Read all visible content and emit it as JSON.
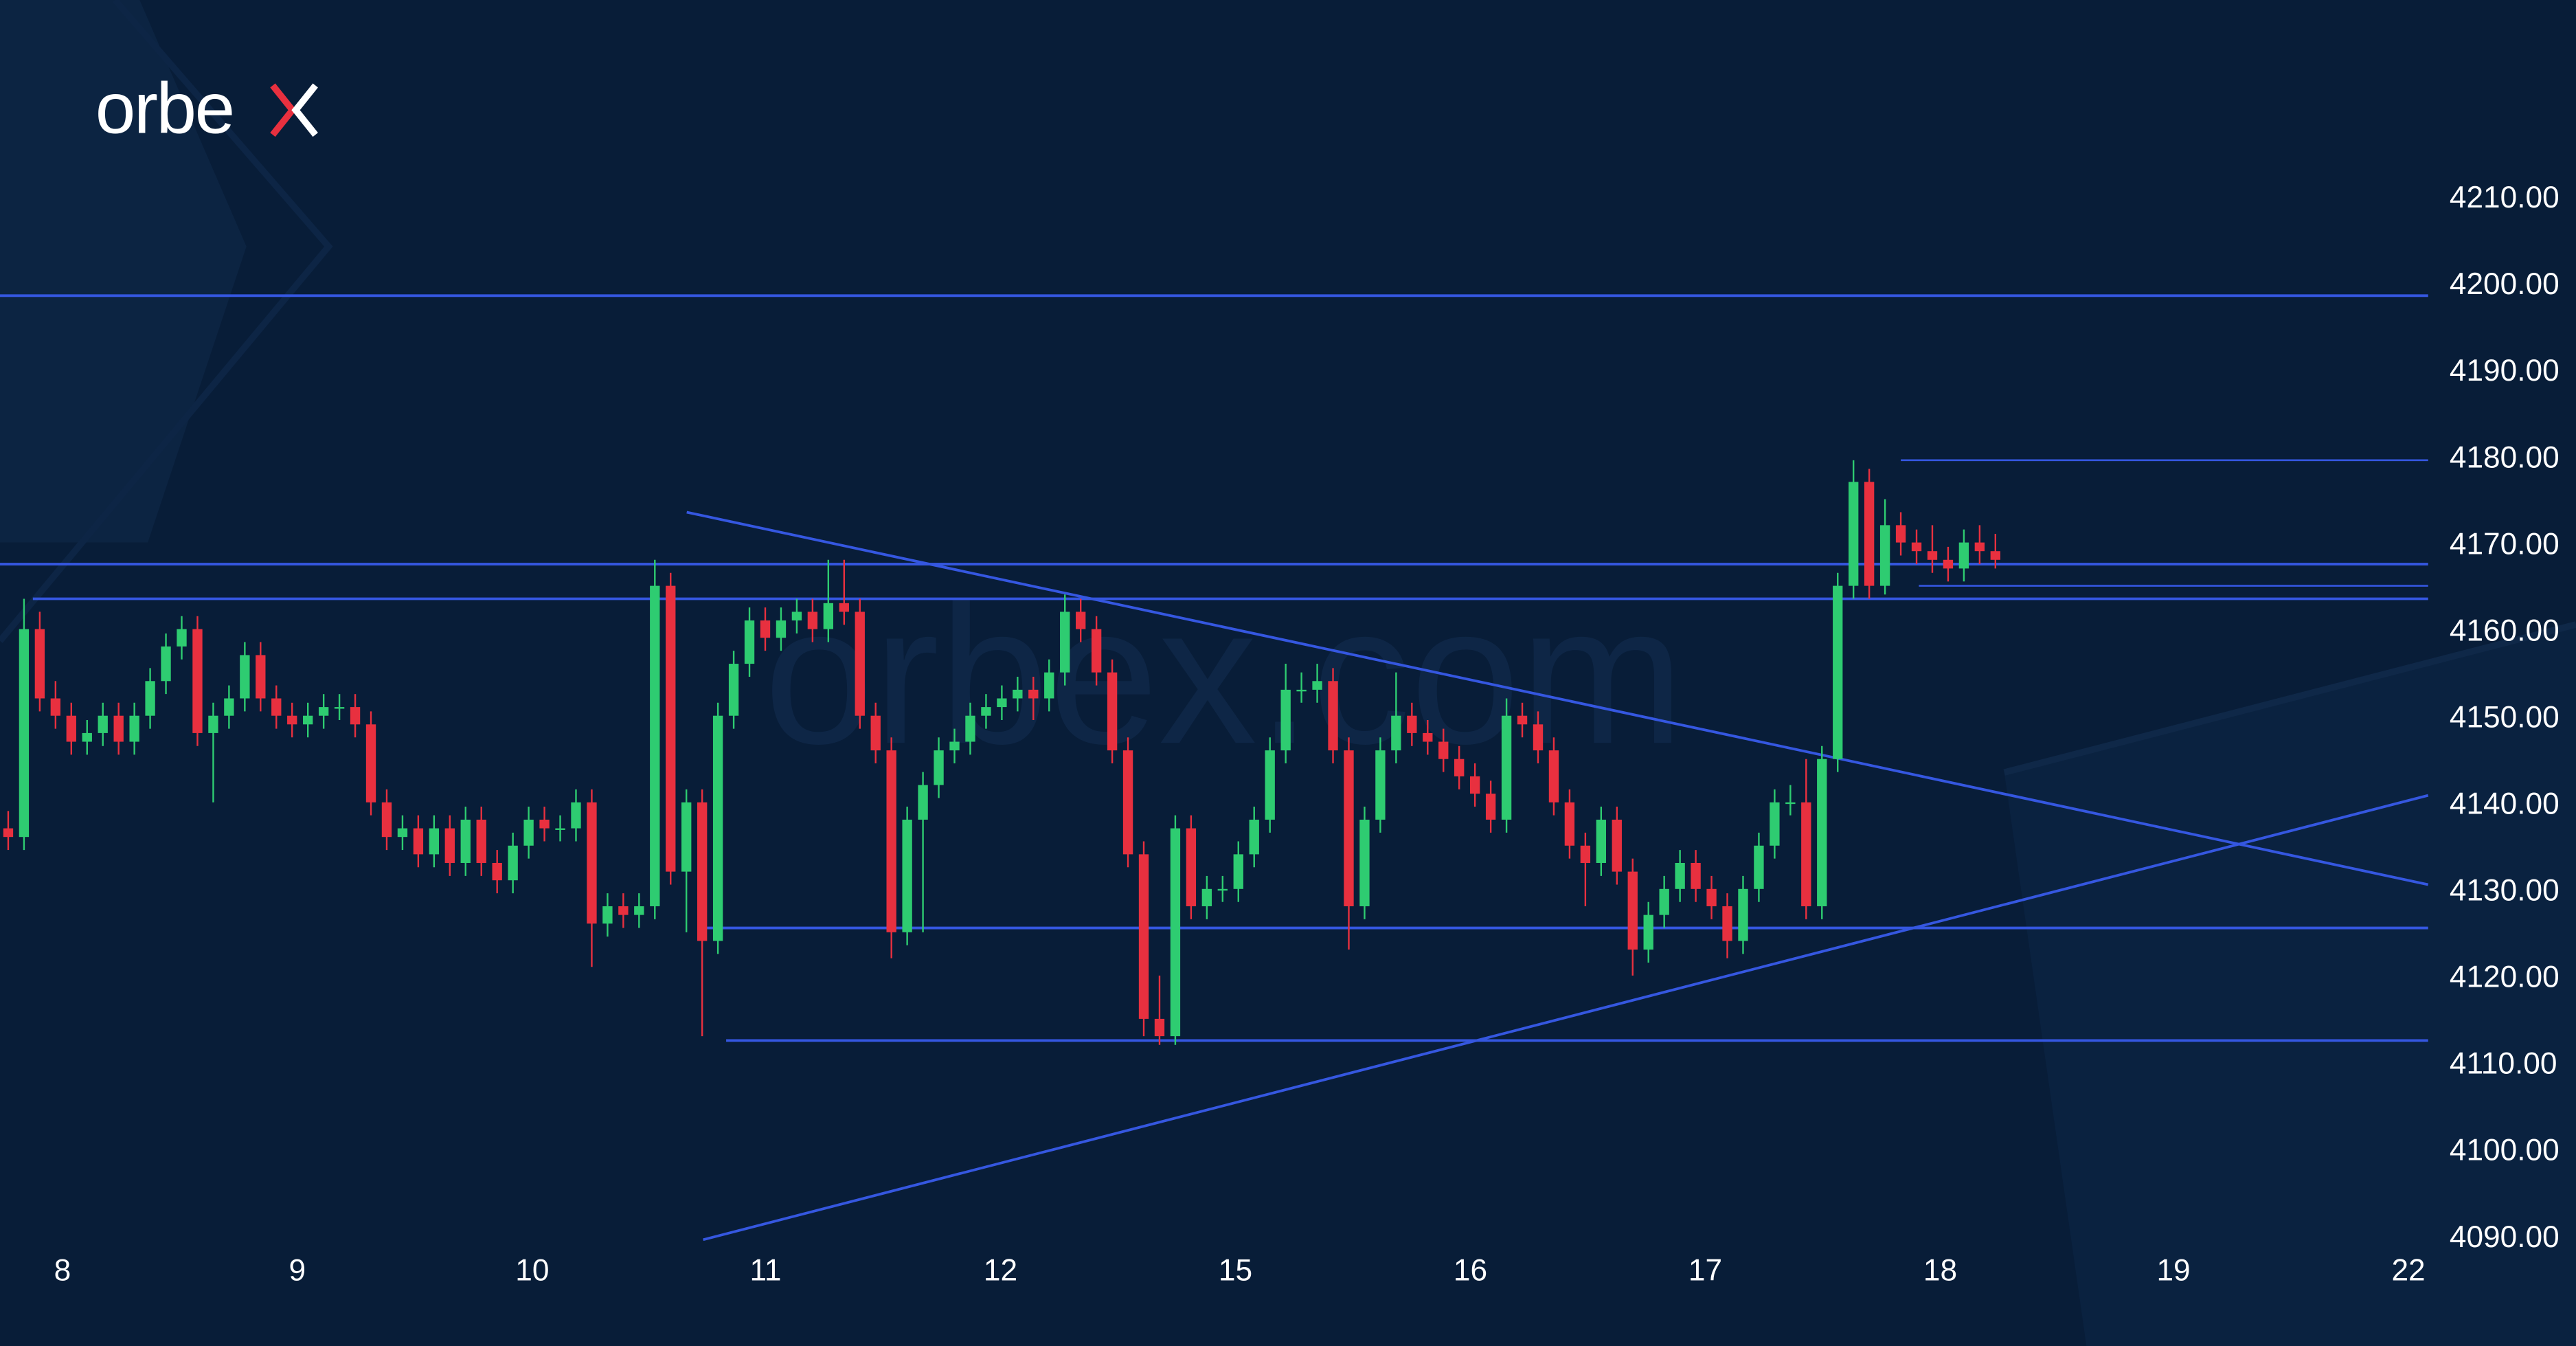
{
  "brand": {
    "logo_text": "orbex",
    "watermark": "orbex.com",
    "accent": "#e8303f"
  },
  "colors": {
    "background": "#081d38",
    "up": "#2ecc71",
    "down": "#e8303f",
    "lines": "#3557e0",
    "text": "#ffffff"
  },
  "chart_data": {
    "type": "candlestick",
    "title": "",
    "xlabel": "",
    "ylabel": "",
    "ylim": [
      4090,
      4210
    ],
    "y_ticks": [
      "4210.00",
      "4200.00",
      "4190.00",
      "4180.00",
      "4170.00",
      "4160.00",
      "4150.00",
      "4140.00",
      "4130.00",
      "4120.00",
      "4110.00",
      "4100.00",
      "4090.00"
    ],
    "x_ticks": [
      "8",
      "9",
      "10",
      "11",
      "12",
      "15",
      "16",
      "17",
      "18",
      "19",
      "22"
    ],
    "grid": false,
    "horizontal_levels": [
      4198.5,
      4167.5,
      4163.5,
      4179.5,
      4165,
      4125.5,
      4112.5
    ],
    "trendlines": [
      {
        "kind": "descending",
        "start_price": 4173.5,
        "end_price": 4130.5
      },
      {
        "kind": "ascending",
        "start_price": 4089.5,
        "end_price": 4140.8
      }
    ],
    "ohlc_columns": [
      "open",
      "high",
      "low",
      "close"
    ],
    "candles": [
      [
        4137,
        4139,
        4134.5,
        4136
      ],
      [
        4136,
        4163.5,
        4134.5,
        4160
      ],
      [
        4160,
        4162,
        4150.5,
        4152
      ],
      [
        4152,
        4154,
        4148.5,
        4150
      ],
      [
        4150,
        4151.5,
        4145.5,
        4147
      ],
      [
        4147,
        4149.5,
        4145.5,
        4148
      ],
      [
        4148,
        4151.5,
        4146.5,
        4150
      ],
      [
        4150,
        4151.5,
        4145.5,
        4147
      ],
      [
        4147,
        4151.5,
        4145.5,
        4150
      ],
      [
        4150,
        4155.5,
        4148.5,
        4154
      ],
      [
        4154,
        4159.5,
        4152.5,
        4158
      ],
      [
        4158,
        4161.5,
        4156.5,
        4160
      ],
      [
        4160,
        4161.5,
        4146.5,
        4148
      ],
      [
        4148,
        4151.5,
        4140,
        4150
      ],
      [
        4150,
        4153.5,
        4148.5,
        4152
      ],
      [
        4152,
        4158.5,
        4150.5,
        4157
      ],
      [
        4157,
        4158.5,
        4150.5,
        4152
      ],
      [
        4152,
        4153.5,
        4148.5,
        4150
      ],
      [
        4150,
        4151.5,
        4147.5,
        4149
      ],
      [
        4149,
        4151.5,
        4147.5,
        4150
      ],
      [
        4150,
        4152.5,
        4148.5,
        4151
      ],
      [
        4151,
        4152.5,
        4149.5,
        4151
      ],
      [
        4151,
        4152.5,
        4147.5,
        4149
      ],
      [
        4149,
        4150.5,
        4138.5,
        4140
      ],
      [
        4140,
        4141.5,
        4134.5,
        4136
      ],
      [
        4136,
        4138.5,
        4134.5,
        4137
      ],
      [
        4137,
        4138.5,
        4132.5,
        4134
      ],
      [
        4134,
        4138.5,
        4132.5,
        4137
      ],
      [
        4137,
        4138.5,
        4131.5,
        4133
      ],
      [
        4133,
        4139.5,
        4131.5,
        4138
      ],
      [
        4138,
        4139.5,
        4131.5,
        4133
      ],
      [
        4133,
        4134.5,
        4129.5,
        4131
      ],
      [
        4131,
        4136.5,
        4129.5,
        4135
      ],
      [
        4135,
        4139.5,
        4133.5,
        4138
      ],
      [
        4138,
        4139.5,
        4135.5,
        4137
      ],
      [
        4137,
        4138.5,
        4135.5,
        4137
      ],
      [
        4137,
        4141.5,
        4135.5,
        4140
      ],
      [
        4140,
        4141.5,
        4121,
        4126
      ],
      [
        4126,
        4129.5,
        4124.5,
        4128
      ],
      [
        4128,
        4129.5,
        4125.5,
        4127
      ],
      [
        4127,
        4129.5,
        4125.5,
        4128
      ],
      [
        4128,
        4168,
        4126.5,
        4165
      ],
      [
        4165,
        4166.5,
        4130.5,
        4132
      ],
      [
        4132,
        4141.5,
        4125,
        4140
      ],
      [
        4140,
        4141.5,
        4113,
        4124
      ],
      [
        4124,
        4151.5,
        4122.5,
        4150
      ],
      [
        4150,
        4157.5,
        4148.5,
        4156
      ],
      [
        4156,
        4162.5,
        4154.5,
        4161
      ],
      [
        4161,
        4162.5,
        4157.5,
        4159
      ],
      [
        4159,
        4162.5,
        4157.5,
        4161
      ],
      [
        4161,
        4163.5,
        4159.5,
        4162
      ],
      [
        4162,
        4163.5,
        4158.5,
        4160
      ],
      [
        4160,
        4168,
        4158.5,
        4163
      ],
      [
        4163,
        4168,
        4160.5,
        4162
      ],
      [
        4162,
        4163.5,
        4148.5,
        4150
      ],
      [
        4150,
        4151.5,
        4144.5,
        4146
      ],
      [
        4146,
        4147.5,
        4122,
        4125
      ],
      [
        4125,
        4139.5,
        4123.5,
        4138
      ],
      [
        4138,
        4143.5,
        4125,
        4142
      ],
      [
        4142,
        4147.5,
        4140.5,
        4146
      ],
      [
        4146,
        4148.5,
        4144.5,
        4147
      ],
      [
        4147,
        4151.5,
        4145.5,
        4150
      ],
      [
        4150,
        4152.5,
        4148.5,
        4151
      ],
      [
        4151,
        4153.5,
        4149.5,
        4152
      ],
      [
        4152,
        4154.5,
        4150.5,
        4153
      ],
      [
        4153,
        4154.5,
        4149.5,
        4152
      ],
      [
        4152,
        4156.5,
        4150.5,
        4155
      ],
      [
        4155,
        4164,
        4153.5,
        4162
      ],
      [
        4162,
        4163.5,
        4158.5,
        4160
      ],
      [
        4160,
        4161.5,
        4153.5,
        4155
      ],
      [
        4155,
        4156.5,
        4144.5,
        4146
      ],
      [
        4146,
        4147.5,
        4132.5,
        4134
      ],
      [
        4134,
        4135.5,
        4113,
        4115
      ],
      [
        4115,
        4120,
        4112,
        4113
      ],
      [
        4113,
        4138.5,
        4112,
        4137
      ],
      [
        4137,
        4138.5,
        4126.5,
        4128
      ],
      [
        4128,
        4131.5,
        4126.5,
        4130
      ],
      [
        4130,
        4131.5,
        4128.5,
        4130
      ],
      [
        4130,
        4135.5,
        4128.5,
        4134
      ],
      [
        4134,
        4139.5,
        4132.5,
        4138
      ],
      [
        4138,
        4147.5,
        4136.5,
        4146
      ],
      [
        4146,
        4156,
        4144.5,
        4153
      ],
      [
        4153,
        4155,
        4151.5,
        4153
      ],
      [
        4153,
        4156,
        4151.5,
        4154
      ],
      [
        4154,
        4155.5,
        4144.5,
        4146
      ],
      [
        4146,
        4147.5,
        4123,
        4128
      ],
      [
        4128,
        4139.5,
        4126.5,
        4138
      ],
      [
        4138,
        4147.5,
        4136.5,
        4146
      ],
      [
        4146,
        4155,
        4144.5,
        4150
      ],
      [
        4150,
        4151.5,
        4146.5,
        4148
      ],
      [
        4148,
        4149.5,
        4145.5,
        4147
      ],
      [
        4147,
        4148.5,
        4143.5,
        4145
      ],
      [
        4145,
        4146.5,
        4141.5,
        4143
      ],
      [
        4143,
        4144.5,
        4139.5,
        4141
      ],
      [
        4141,
        4142.5,
        4136.5,
        4138
      ],
      [
        4138,
        4152,
        4136.5,
        4150
      ],
      [
        4150,
        4151.5,
        4147.5,
        4149
      ],
      [
        4149,
        4150.5,
        4144.5,
        4146
      ],
      [
        4146,
        4147.5,
        4138.5,
        4140
      ],
      [
        4140,
        4141.5,
        4133.5,
        4135
      ],
      [
        4135,
        4136.5,
        4128,
        4133
      ],
      [
        4133,
        4139.5,
        4131.5,
        4138
      ],
      [
        4138,
        4139.5,
        4130.5,
        4132
      ],
      [
        4132,
        4133.5,
        4120,
        4123
      ],
      [
        4123,
        4128.5,
        4121.5,
        4127
      ],
      [
        4127,
        4131.5,
        4125.5,
        4130
      ],
      [
        4130,
        4134.5,
        4128.5,
        4133
      ],
      [
        4133,
        4134.5,
        4128.5,
        4130
      ],
      [
        4130,
        4131.5,
        4126.5,
        4128
      ],
      [
        4128,
        4129.5,
        4122,
        4124
      ],
      [
        4124,
        4131.5,
        4122.5,
        4130
      ],
      [
        4130,
        4136.5,
        4128.5,
        4135
      ],
      [
        4135,
        4141.5,
        4133.5,
        4140
      ],
      [
        4140,
        4142,
        4138.5,
        4140
      ],
      [
        4140,
        4145,
        4126.5,
        4128
      ],
      [
        4128,
        4146.5,
        4126.5,
        4145
      ],
      [
        4145,
        4166.5,
        4143.5,
        4165
      ],
      [
        4165,
        4179.5,
        4163.5,
        4177
      ],
      [
        4177,
        4178.5,
        4163.5,
        4165
      ],
      [
        4165,
        4175,
        4164,
        4172
      ],
      [
        4172,
        4173.5,
        4168.5,
        4170
      ],
      [
        4170,
        4171.5,
        4167.5,
        4169
      ],
      [
        4169,
        4172,
        4166.5,
        4168
      ],
      [
        4168,
        4169.5,
        4165.5,
        4167
      ],
      [
        4167,
        4171.5,
        4165.5,
        4170
      ],
      [
        4170,
        4172,
        4167.5,
        4169
      ],
      [
        4169,
        4171,
        4167,
        4168
      ]
    ]
  }
}
